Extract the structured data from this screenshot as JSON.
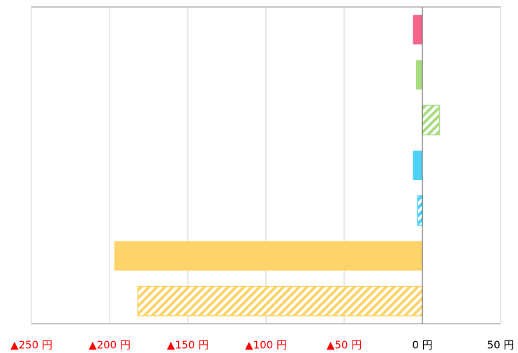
{
  "chart_data": {
    "type": "hbar",
    "categories": [
      null,
      null,
      null,
      null,
      null,
      null,
      null
    ],
    "values": [
      -6,
      -4,
      11,
      -6,
      -3,
      -197,
      -182
    ],
    "colors": [
      "#f4648c",
      "#a8dc80",
      "#a8dc80",
      "#4dd2f5",
      "#4dd2f5",
      "#fdd36a",
      "#fdd36a"
    ],
    "hatched": [
      false,
      false,
      true,
      false,
      true,
      false,
      true
    ],
    "xlim": [
      -250,
      50
    ],
    "xticks": [
      {
        "value": -250,
        "label": "▲250 円"
      },
      {
        "value": -200,
        "label": "▲200 円"
      },
      {
        "value": -150,
        "label": "▲150 円"
      },
      {
        "value": -100,
        "label": "▲100 円"
      },
      {
        "value": -50,
        "label": "▲50 円"
      },
      {
        "value": 0,
        "label": "0 円"
      },
      {
        "value": 50,
        "label": "50 円"
      }
    ],
    "negative_label_color": "#ff0000",
    "grid": true
  }
}
